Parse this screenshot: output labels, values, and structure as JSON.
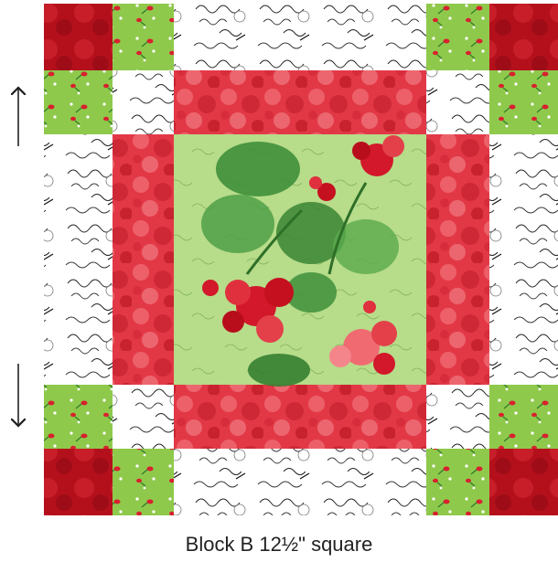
{
  "caption": "Block B 12½\" square",
  "arrows": {
    "up": "pressing-direction-up",
    "down": "pressing-direction-down"
  },
  "colors": {
    "red_print": "#e23846",
    "deep_red": "#b4101c",
    "lime_print": "#8fc94c",
    "script_white": "#ffffff",
    "center_green": "#b7dc8a",
    "leaf_green": "#3f8f3a",
    "petal_red": "#d2182a",
    "ink": "#222222"
  }
}
